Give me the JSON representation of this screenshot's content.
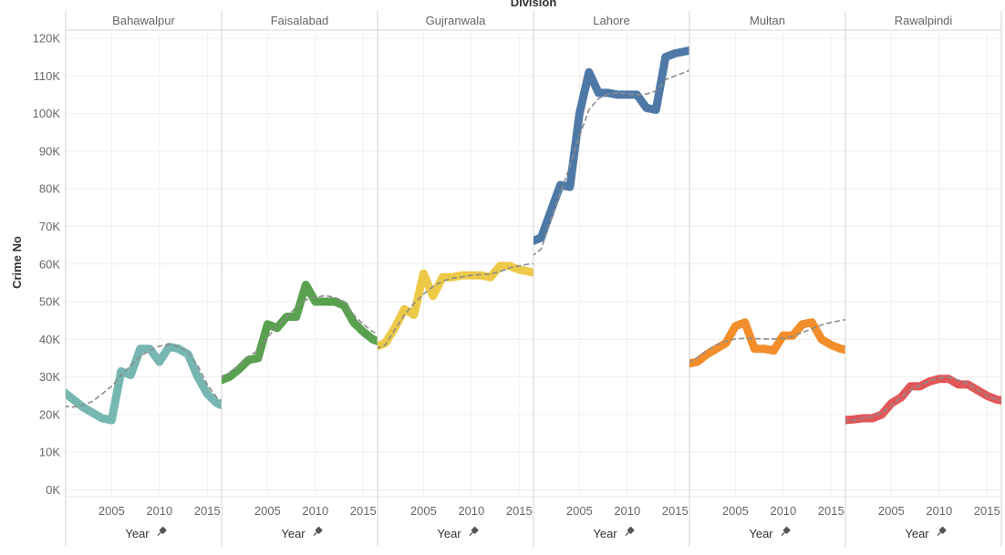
{
  "chart_data": {
    "type": "line",
    "header": "Division",
    "ylabel": "Crime No",
    "xlabel": "Year",
    "pin_icon": "pin-icon",
    "ylim": [
      -2500,
      123000
    ],
    "xlim": [
      2000.2,
      2016.5
    ],
    "y_ticks": [
      0,
      10000,
      20000,
      30000,
      40000,
      50000,
      60000,
      70000,
      80000,
      90000,
      100000,
      110000,
      120000
    ],
    "y_tick_labels": [
      "0K",
      "10K",
      "20K",
      "30K",
      "40K",
      "50K",
      "60K",
      "70K",
      "80K",
      "90K",
      "100K",
      "110K",
      "120K"
    ],
    "x_ticks": [
      2005,
      2010,
      2015
    ],
    "x_tick_labels": [
      "2005",
      "2010",
      "2015"
    ],
    "trend_line_style": "dashed grey",
    "x": [
      2000,
      2001,
      2002,
      2003,
      2004,
      2005,
      2006,
      2007,
      2008,
      2009,
      2010,
      2011,
      2012,
      2013,
      2014,
      2015,
      2016,
      2017
    ],
    "series": [
      {
        "name": "Bahawalpur",
        "color": "#76b7b2",
        "values": [
          26000,
          24000,
          22000,
          20500,
          19000,
          18500,
          31500,
          30500,
          37500,
          37500,
          34000,
          38000,
          37500,
          36000,
          30000,
          25500,
          23000,
          22000
        ],
        "trend": [
          22200,
          22000,
          22500,
          23500,
          25500,
          27500,
          30500,
          33000,
          35500,
          37000,
          38200,
          38600,
          38000,
          36500,
          33000,
          28000,
          24500,
          23000
        ]
      },
      {
        "name": "Faisalabad",
        "color": "#59a14f",
        "values": [
          29000,
          30000,
          32000,
          34500,
          35000,
          44000,
          43000,
          46000,
          46000,
          54500,
          50000,
          50000,
          50000,
          49000,
          44500,
          42000,
          40000,
          39000
        ],
        "trend": [
          29500,
          31000,
          33000,
          35500,
          37000,
          40500,
          43500,
          46000,
          48500,
          50500,
          51200,
          51600,
          51200,
          50000,
          46500,
          44000,
          42000,
          41000
        ]
      },
      {
        "name": "Gujranwala",
        "color": "#edc948",
        "values": [
          38000,
          39000,
          43000,
          48000,
          46500,
          57500,
          51500,
          56500,
          56500,
          57000,
          57000,
          57000,
          56500,
          59500,
          59500,
          58500,
          58000,
          57500
        ],
        "trend": [
          37500,
          38500,
          42500,
          46500,
          49500,
          52000,
          54000,
          55500,
          56200,
          56600,
          57000,
          57200,
          57400,
          58000,
          59000,
          59500,
          60000,
          60200
        ]
      },
      {
        "name": "Lahore",
        "color": "#4e79a7",
        "values": [
          66000,
          67000,
          74000,
          81000,
          80500,
          100000,
          111000,
          105500,
          105500,
          105000,
          105000,
          105000,
          101500,
          101000,
          115000,
          116000,
          116500,
          117000
        ],
        "trend": [
          62000,
          64000,
          71500,
          79000,
          86000,
          94000,
          101000,
          104000,
          105200,
          105500,
          105200,
          105000,
          105200,
          106000,
          109000,
          110000,
          111000,
          112000
        ]
      },
      {
        "name": "Multan",
        "color": "#f28e2b",
        "values": [
          33500,
          34000,
          36000,
          37500,
          39000,
          43500,
          44500,
          37500,
          37500,
          37000,
          41000,
          41000,
          44000,
          44500,
          40000,
          38500,
          37500,
          37000
        ],
        "trend": [
          33800,
          35000,
          37000,
          38500,
          39500,
          40100,
          40300,
          40200,
          40100,
          40100,
          40300,
          40800,
          41800,
          42800,
          43800,
          44500,
          45000,
          45500
        ]
      },
      {
        "name": "Rawalpindi",
        "color": "#e15759",
        "values": [
          18500,
          18700,
          19000,
          19000,
          20000,
          23000,
          24500,
          27500,
          27500,
          28800,
          29500,
          29500,
          28000,
          28000,
          26500,
          25000,
          24000,
          23500
        ],
        "trend": [
          18300,
          18500,
          19000,
          19500,
          20500,
          22500,
          24500,
          26500,
          27800,
          29000,
          29700,
          29900,
          29200,
          28200,
          26500,
          25000,
          24000,
          23500
        ]
      }
    ]
  }
}
